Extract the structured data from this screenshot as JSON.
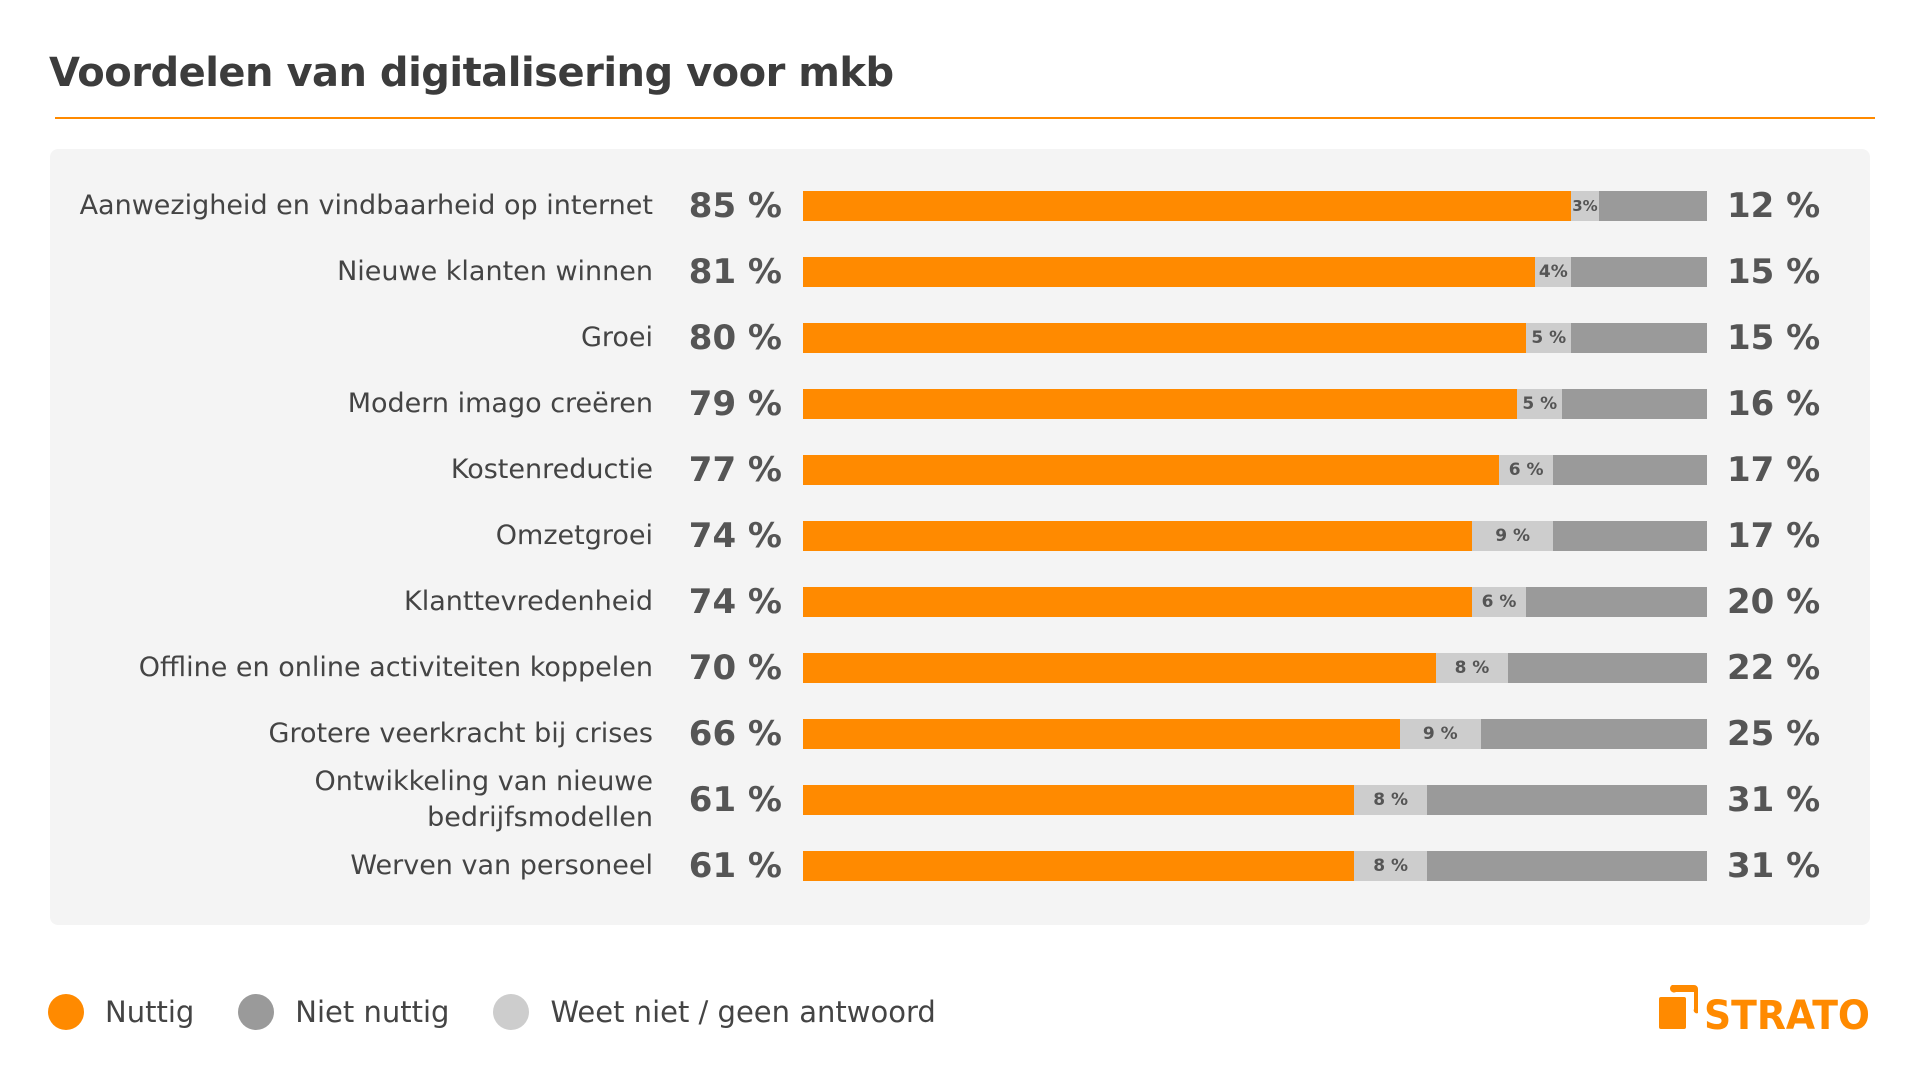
{
  "colors": {
    "useful": "#ff8a00",
    "not_useful": "#9a9a9a",
    "unknown": "#cdcdcd",
    "panel": "#f4f4f4"
  },
  "logo_text": "STRATO",
  "chart_data": {
    "type": "bar",
    "orientation": "horizontal",
    "stacked": true,
    "title": "Voordelen van digitalisering voor mkb",
    "xlim": [
      0,
      100
    ],
    "unit": "%",
    "categories": [
      "Aanwezigheid en vindbaarheid op internet",
      "Nieuwe klanten winnen",
      "Groei",
      "Modern imago creëren",
      "Kostenreductie",
      "Omzetgroei",
      "Klanttevredenheid",
      "Offline en online activiteiten koppelen",
      "Grotere veerkracht bij crises",
      "Ontwikkeling van nieuwe bedrijfsmodellen",
      "Werven van personeel"
    ],
    "series": [
      {
        "name": "Nuttig",
        "color": "#ff8a00",
        "values": [
          85,
          81,
          80,
          79,
          77,
          74,
          74,
          70,
          66,
          61,
          61
        ]
      },
      {
        "name": "Weet niet / geen antwoord",
        "color": "#cdcdcd",
        "values": [
          3,
          4,
          5,
          5,
          6,
          9,
          6,
          8,
          9,
          8,
          8
        ]
      },
      {
        "name": "Niet nuttig",
        "color": "#9a9a9a",
        "values": [
          12,
          15,
          15,
          16,
          17,
          17,
          20,
          22,
          25,
          31,
          31
        ]
      }
    ],
    "legend": {
      "placement": "bottom-left",
      "entries": [
        {
          "label": "Nuttig",
          "color": "#ff8a00"
        },
        {
          "label": "Niet nuttig",
          "color": "#9a9a9a"
        },
        {
          "label": "Weet niet / geen antwoord",
          "color": "#cdcdcd"
        }
      ]
    }
  }
}
